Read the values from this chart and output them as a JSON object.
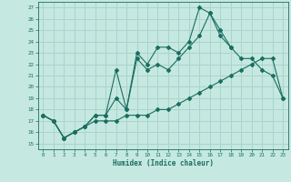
{
  "title": "",
  "xlabel": "Humidex (Indice chaleur)",
  "bg_color": "#c5e8e0",
  "grid_color": "#aad4cc",
  "line_color": "#1a6e60",
  "xlim": [
    -0.5,
    23.5
  ],
  "ylim": [
    14.5,
    27.5
  ],
  "xticks": [
    0,
    1,
    2,
    3,
    4,
    5,
    6,
    7,
    8,
    9,
    10,
    11,
    12,
    13,
    14,
    15,
    16,
    17,
    18,
    19,
    20,
    21,
    22,
    23
  ],
  "yticks": [
    15,
    16,
    17,
    18,
    19,
    20,
    21,
    22,
    23,
    24,
    25,
    26,
    27
  ],
  "line1_x": [
    0,
    1,
    2,
    3,
    4,
    5,
    6,
    7,
    8,
    9,
    10,
    11,
    12,
    13,
    14,
    15,
    16,
    17,
    18,
    19,
    20,
    21,
    22,
    23
  ],
  "line1_y": [
    17.5,
    17.0,
    15.5,
    16.0,
    16.5,
    17.5,
    17.5,
    19.0,
    18.0,
    23.0,
    22.0,
    23.5,
    23.5,
    23.0,
    24.0,
    27.0,
    26.5,
    25.0,
    23.5,
    null,
    null,
    null,
    null,
    null
  ],
  "line2_x": [
    0,
    1,
    2,
    3,
    4,
    5,
    6,
    7,
    8,
    9,
    10,
    11,
    12,
    13,
    14,
    15,
    16,
    17,
    18,
    19,
    20,
    21,
    22,
    23
  ],
  "line2_y": [
    17.5,
    17.0,
    15.5,
    16.0,
    16.5,
    17.5,
    17.5,
    21.5,
    18.0,
    22.5,
    21.5,
    22.0,
    21.5,
    22.5,
    23.5,
    24.5,
    26.5,
    24.5,
    23.5,
    22.5,
    22.5,
    21.5,
    21.0,
    19.0
  ],
  "line3_x": [
    0,
    1,
    2,
    3,
    4,
    5,
    6,
    7,
    8,
    9,
    10,
    11,
    12,
    13,
    14,
    15,
    16,
    17,
    18,
    19,
    20,
    21,
    22,
    23
  ],
  "line3_y": [
    17.5,
    17.0,
    15.5,
    16.0,
    16.5,
    17.0,
    17.0,
    17.0,
    17.5,
    17.5,
    17.5,
    18.0,
    18.0,
    18.5,
    19.0,
    19.5,
    20.0,
    20.5,
    21.0,
    21.5,
    22.0,
    22.5,
    22.5,
    19.0
  ]
}
